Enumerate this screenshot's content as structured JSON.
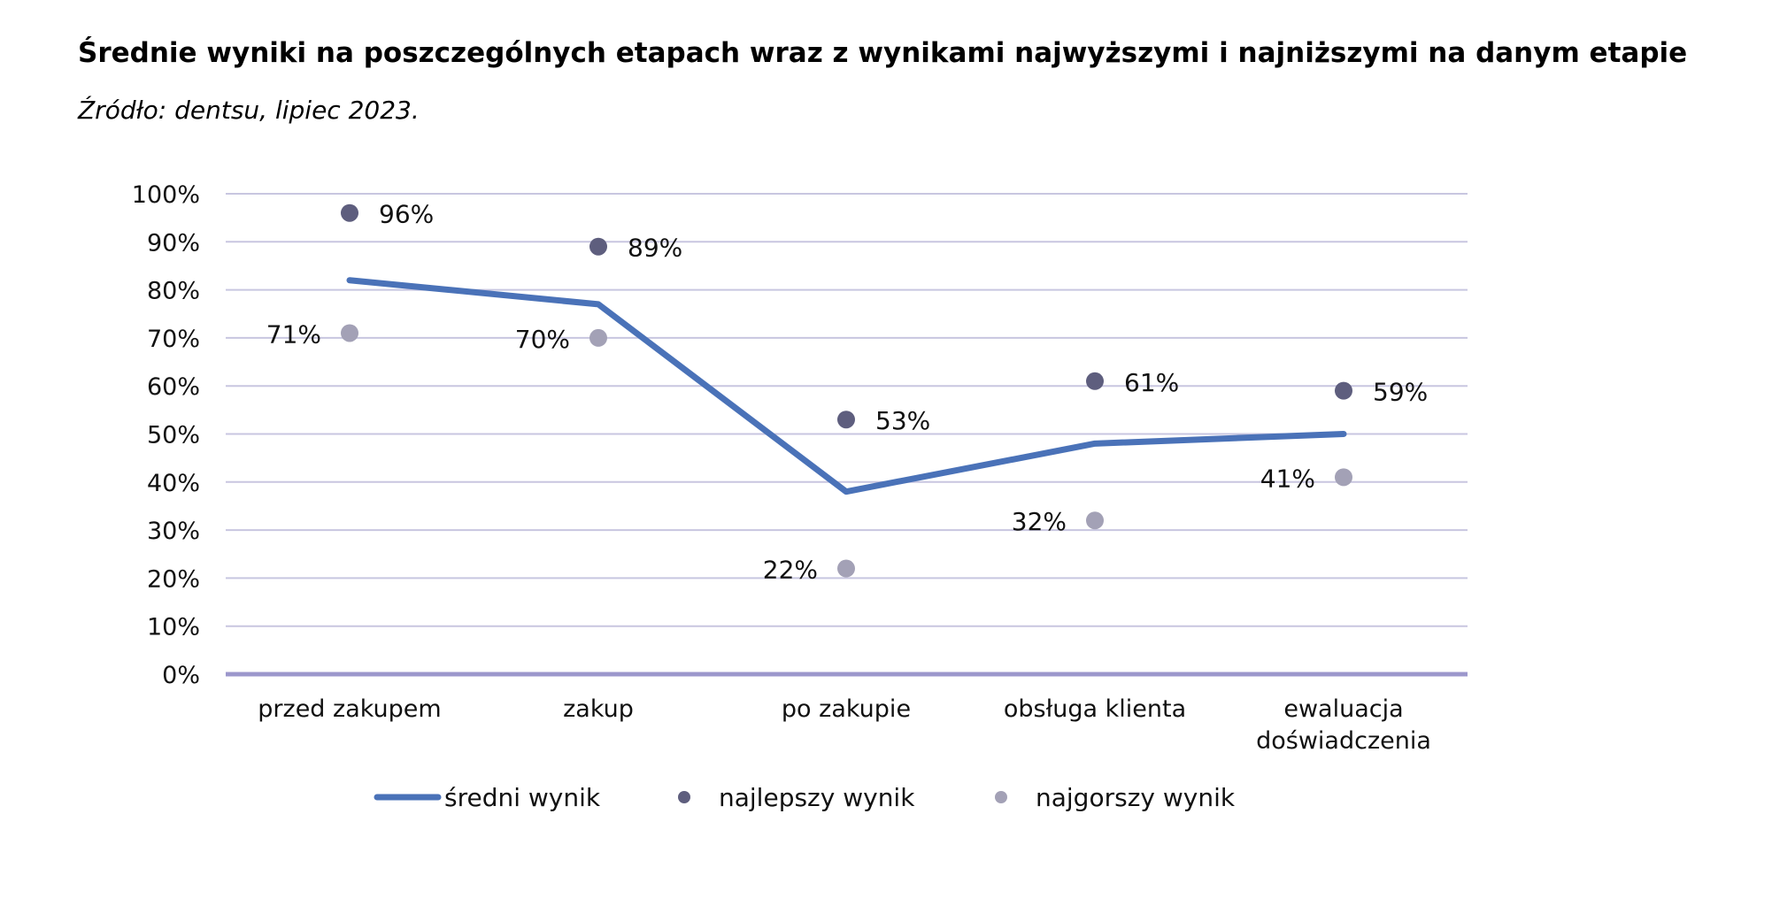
{
  "title": "Średnie wyniki na poszczególnych etapach wraz z wynikami najwyższymi i najniższymi na danym etapie",
  "subtitle": "Źródło: dentsu, lipiec 2023.",
  "colors": {
    "average": "#4a72b8",
    "best": "#5e5e7e",
    "worst": "#a3a1b6",
    "grid": "#c8c6e0",
    "baseline": "#9c97cc"
  },
  "chart_data": {
    "type": "line",
    "categories": [
      [
        "przed zakupem"
      ],
      [
        "zakup"
      ],
      [
        "po zakupie"
      ],
      [
        "obsługa klienta"
      ],
      [
        "ewaluacja",
        "doświadczenia"
      ]
    ],
    "yticks": [
      "0%",
      "10%",
      "20%",
      "30%",
      "40%",
      "50%",
      "60%",
      "70%",
      "80%",
      "90%",
      "100%"
    ],
    "ylim": [
      0,
      100
    ],
    "grid": true,
    "legend_position": "bottom",
    "series": [
      {
        "name": "średni wynik",
        "kind": "line",
        "values": [
          82,
          77,
          38,
          48,
          50
        ]
      },
      {
        "name": "najlepszy wynik",
        "kind": "marker",
        "values": [
          96,
          89,
          53,
          61,
          59
        ],
        "labels": [
          "96%",
          "89%",
          "53%",
          "61%",
          "59%"
        ],
        "label_side": "right"
      },
      {
        "name": "najgorszy wynik",
        "kind": "marker",
        "values": [
          71,
          70,
          22,
          32,
          41
        ],
        "labels": [
          "71%",
          "70%",
          "22%",
          "32%",
          "41%"
        ],
        "label_side": "left"
      }
    ]
  }
}
